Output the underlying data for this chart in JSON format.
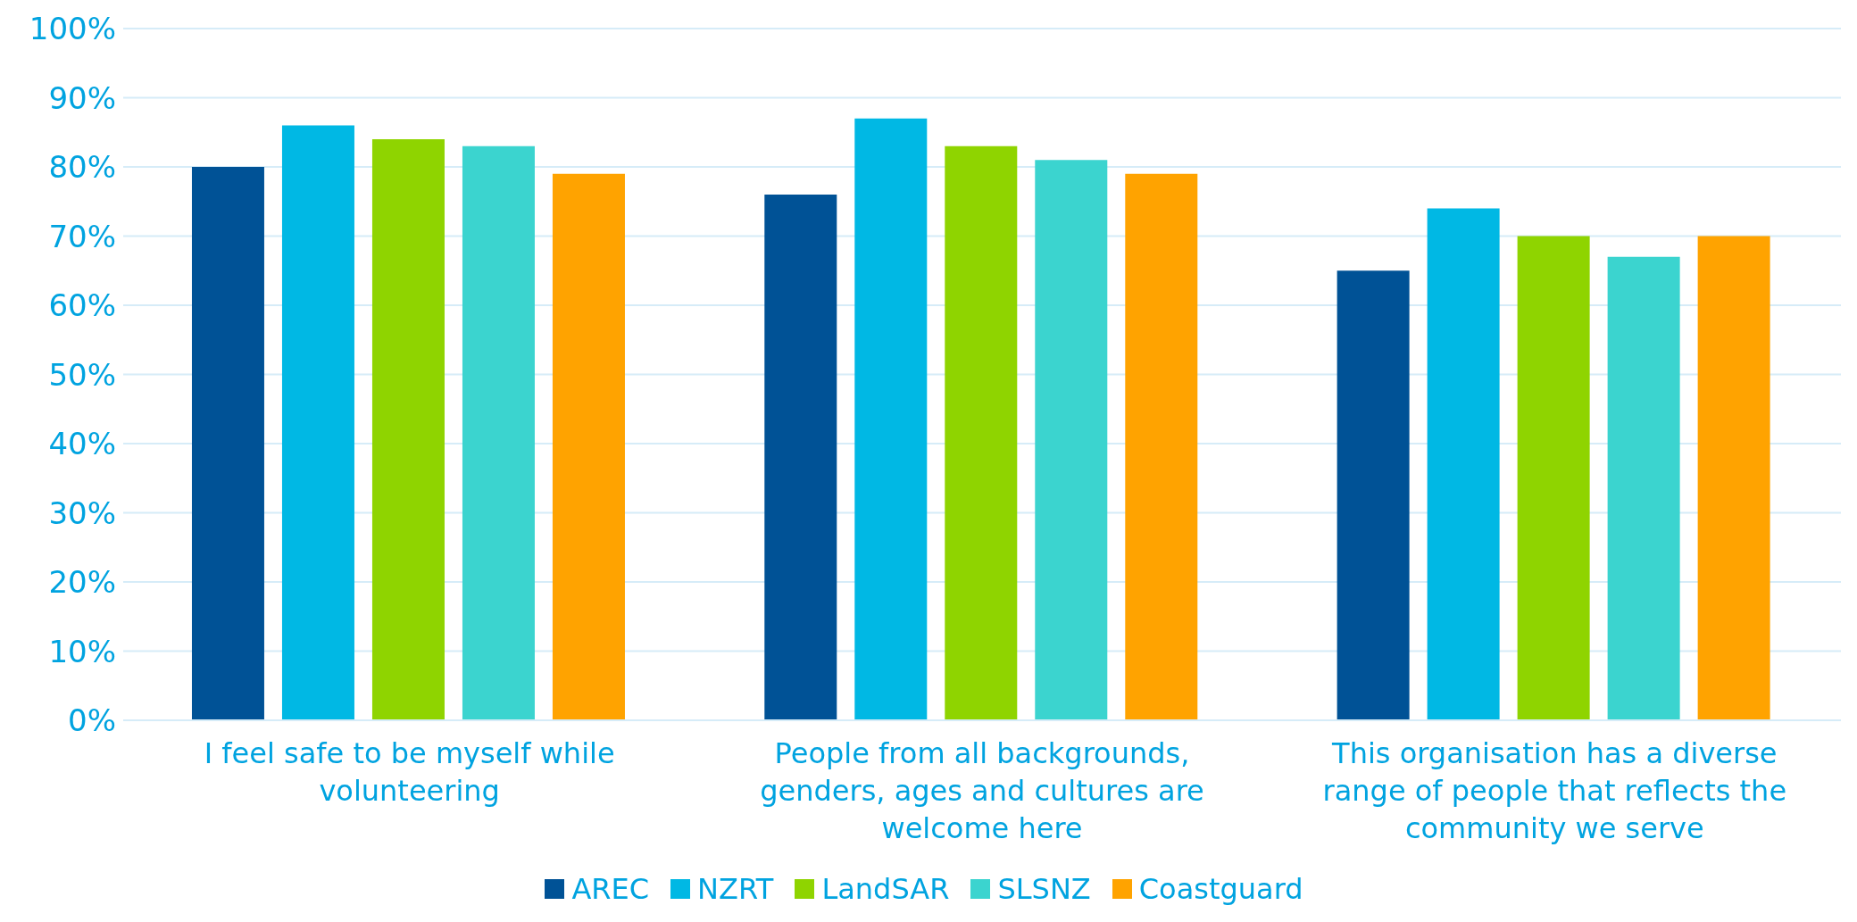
{
  "chart_data": {
    "type": "bar",
    "categories": [
      "I feel safe to be myself while volunteering",
      "People from all backgrounds, genders, ages and cultures are welcome here",
      "This organisation has a diverse range of people that reflects the community we serve"
    ],
    "series": [
      {
        "name": "AREC",
        "color": "#005296",
        "values": [
          80,
          76,
          65
        ]
      },
      {
        "name": "NZRT",
        "color": "#00b8e4",
        "values": [
          86,
          87,
          74
        ]
      },
      {
        "name": "LandSAR",
        "color": "#8fd400",
        "values": [
          84,
          83,
          70
        ]
      },
      {
        "name": "SLSNZ",
        "color": "#3bd4cf",
        "values": [
          83,
          81,
          67
        ]
      },
      {
        "name": "Coastguard",
        "color": "#ffa300",
        "values": [
          79,
          79,
          70
        ]
      }
    ],
    "ylim": [
      0,
      100
    ],
    "yticks": [
      {
        "value": 0,
        "label": "0%"
      },
      {
        "value": 10,
        "label": "10%"
      },
      {
        "value": 20,
        "label": "20%"
      },
      {
        "value": 30,
        "label": "30%"
      },
      {
        "value": 40,
        "label": "40%"
      },
      {
        "value": 50,
        "label": "50%"
      },
      {
        "value": 60,
        "label": "60%"
      },
      {
        "value": 70,
        "label": "70%"
      },
      {
        "value": 80,
        "label": "80%"
      },
      {
        "value": 90,
        "label": "90%"
      },
      {
        "value": 100,
        "label": "100%"
      }
    ],
    "grid": "y",
    "legend": "bottom"
  }
}
